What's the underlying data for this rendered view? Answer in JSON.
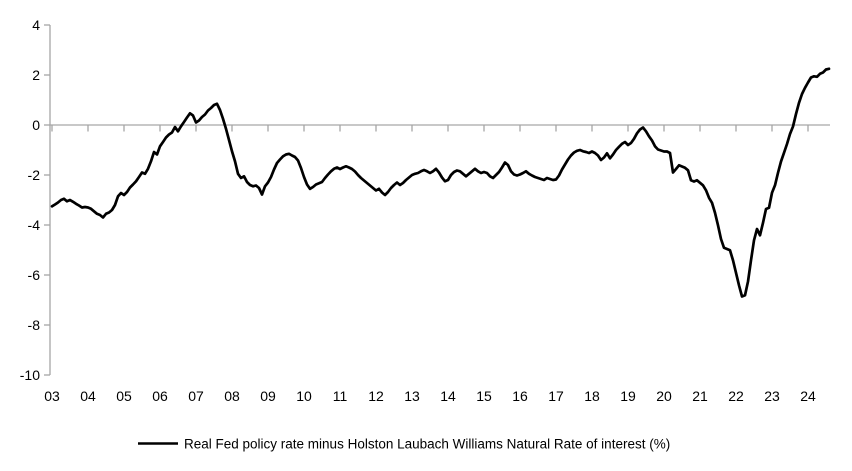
{
  "chart_data": {
    "type": "line",
    "title": "",
    "xlabel": "",
    "ylabel": "",
    "ylim": [
      -10,
      4
    ],
    "y_ticks": [
      4,
      2,
      0,
      -2,
      -4,
      -6,
      -8,
      -10
    ],
    "x_tick_labels": [
      "03",
      "04",
      "05",
      "06",
      "07",
      "08",
      "09",
      "10",
      "11",
      "12",
      "13",
      "14",
      "15",
      "16",
      "17",
      "18",
      "19",
      "20",
      "21",
      "22",
      "23",
      "24"
    ],
    "x_start_year": 2003,
    "frequency": "monthly",
    "grid": false,
    "zero_axis_with_ticks": true,
    "legend_position": "bottom-center",
    "axis_color": "#a6a6a6",
    "line_color": "#000000",
    "background_color": "#ffffff",
    "series": [
      {
        "name": "Real Fed policy rate minus Holston Laubach Williams Natural Rate of interest (%)",
        "color": "#000000",
        "values": [
          -3.25,
          -3.18,
          -3.1,
          -3.0,
          -2.95,
          -3.05,
          -3.0,
          -3.07,
          -3.15,
          -3.22,
          -3.3,
          -3.28,
          -3.3,
          -3.35,
          -3.45,
          -3.55,
          -3.6,
          -3.7,
          -3.55,
          -3.5,
          -3.4,
          -3.2,
          -2.85,
          -2.72,
          -2.8,
          -2.68,
          -2.5,
          -2.38,
          -2.25,
          -2.08,
          -1.9,
          -1.95,
          -1.75,
          -1.45,
          -1.08,
          -1.18,
          -0.85,
          -0.68,
          -0.5,
          -0.38,
          -0.3,
          -0.08,
          -0.25,
          -0.05,
          0.12,
          0.3,
          0.47,
          0.38,
          0.1,
          0.18,
          0.32,
          0.42,
          0.58,
          0.68,
          0.8,
          0.85,
          0.6,
          0.25,
          -0.15,
          -0.6,
          -1.05,
          -1.45,
          -1.95,
          -2.12,
          -2.05,
          -2.28,
          -2.4,
          -2.45,
          -2.42,
          -2.52,
          -2.78,
          -2.45,
          -2.3,
          -2.08,
          -1.78,
          -1.52,
          -1.38,
          -1.25,
          -1.18,
          -1.15,
          -1.22,
          -1.28,
          -1.42,
          -1.72,
          -2.08,
          -2.38,
          -2.55,
          -2.48,
          -2.38,
          -2.33,
          -2.28,
          -2.12,
          -1.98,
          -1.85,
          -1.75,
          -1.7,
          -1.76,
          -1.7,
          -1.65,
          -1.7,
          -1.76,
          -1.86,
          -2.0,
          -2.12,
          -2.22,
          -2.32,
          -2.42,
          -2.52,
          -2.62,
          -2.55,
          -2.7,
          -2.8,
          -2.68,
          -2.52,
          -2.4,
          -2.3,
          -2.4,
          -2.32,
          -2.2,
          -2.1,
          -2.0,
          -1.95,
          -1.92,
          -1.85,
          -1.8,
          -1.85,
          -1.92,
          -1.85,
          -1.75,
          -1.9,
          -2.1,
          -2.25,
          -2.2,
          -2.0,
          -1.88,
          -1.82,
          -1.85,
          -1.95,
          -2.05,
          -1.95,
          -1.85,
          -1.75,
          -1.85,
          -1.92,
          -1.88,
          -1.92,
          -2.05,
          -2.12,
          -2.0,
          -1.88,
          -1.7,
          -1.5,
          -1.6,
          -1.85,
          -1.98,
          -2.02,
          -1.98,
          -1.92,
          -1.85,
          -1.95,
          -2.02,
          -2.08,
          -2.12,
          -2.16,
          -2.2,
          -2.12,
          -2.16,
          -2.2,
          -2.18,
          -2.02,
          -1.78,
          -1.58,
          -1.38,
          -1.22,
          -1.1,
          -1.03,
          -1.0,
          -1.05,
          -1.08,
          -1.12,
          -1.06,
          -1.12,
          -1.22,
          -1.4,
          -1.3,
          -1.13,
          -1.33,
          -1.18,
          -1.0,
          -0.87,
          -0.75,
          -0.68,
          -0.8,
          -0.72,
          -0.55,
          -0.33,
          -0.18,
          -0.1,
          -0.25,
          -0.45,
          -0.62,
          -0.85,
          -0.98,
          -1.02,
          -1.06,
          -1.06,
          -1.12,
          -1.9,
          -1.76,
          -1.61,
          -1.66,
          -1.71,
          -1.81,
          -2.21,
          -2.26,
          -2.21,
          -2.31,
          -2.41,
          -2.61,
          -2.91,
          -3.11,
          -3.51,
          -4.01,
          -4.56,
          -4.91,
          -4.96,
          -5.01,
          -5.41,
          -5.91,
          -6.41,
          -6.86,
          -6.81,
          -6.26,
          -5.41,
          -4.61,
          -4.16,
          -4.41,
          -3.91,
          -3.36,
          -3.31,
          -2.71,
          -2.41,
          -1.91,
          -1.46,
          -1.11,
          -0.76,
          -0.36,
          -0.06,
          0.44,
          0.89,
          1.24,
          1.49,
          1.7,
          1.9,
          1.95,
          1.93,
          2.05,
          2.1,
          2.22,
          2.25
        ]
      }
    ]
  },
  "legend": {
    "label": "Real Fed policy rate minus Holston Laubach Williams Natural Rate of interest (%)"
  }
}
